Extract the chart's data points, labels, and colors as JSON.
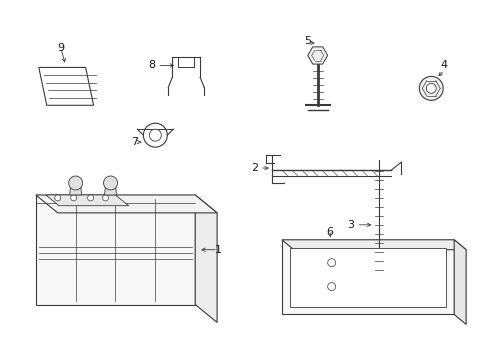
{
  "bg_color": "#ffffff",
  "lc": "#3a3a3a",
  "label_color": "#1a1a1a",
  "fig_width": 4.89,
  "fig_height": 3.6,
  "dpi": 100
}
